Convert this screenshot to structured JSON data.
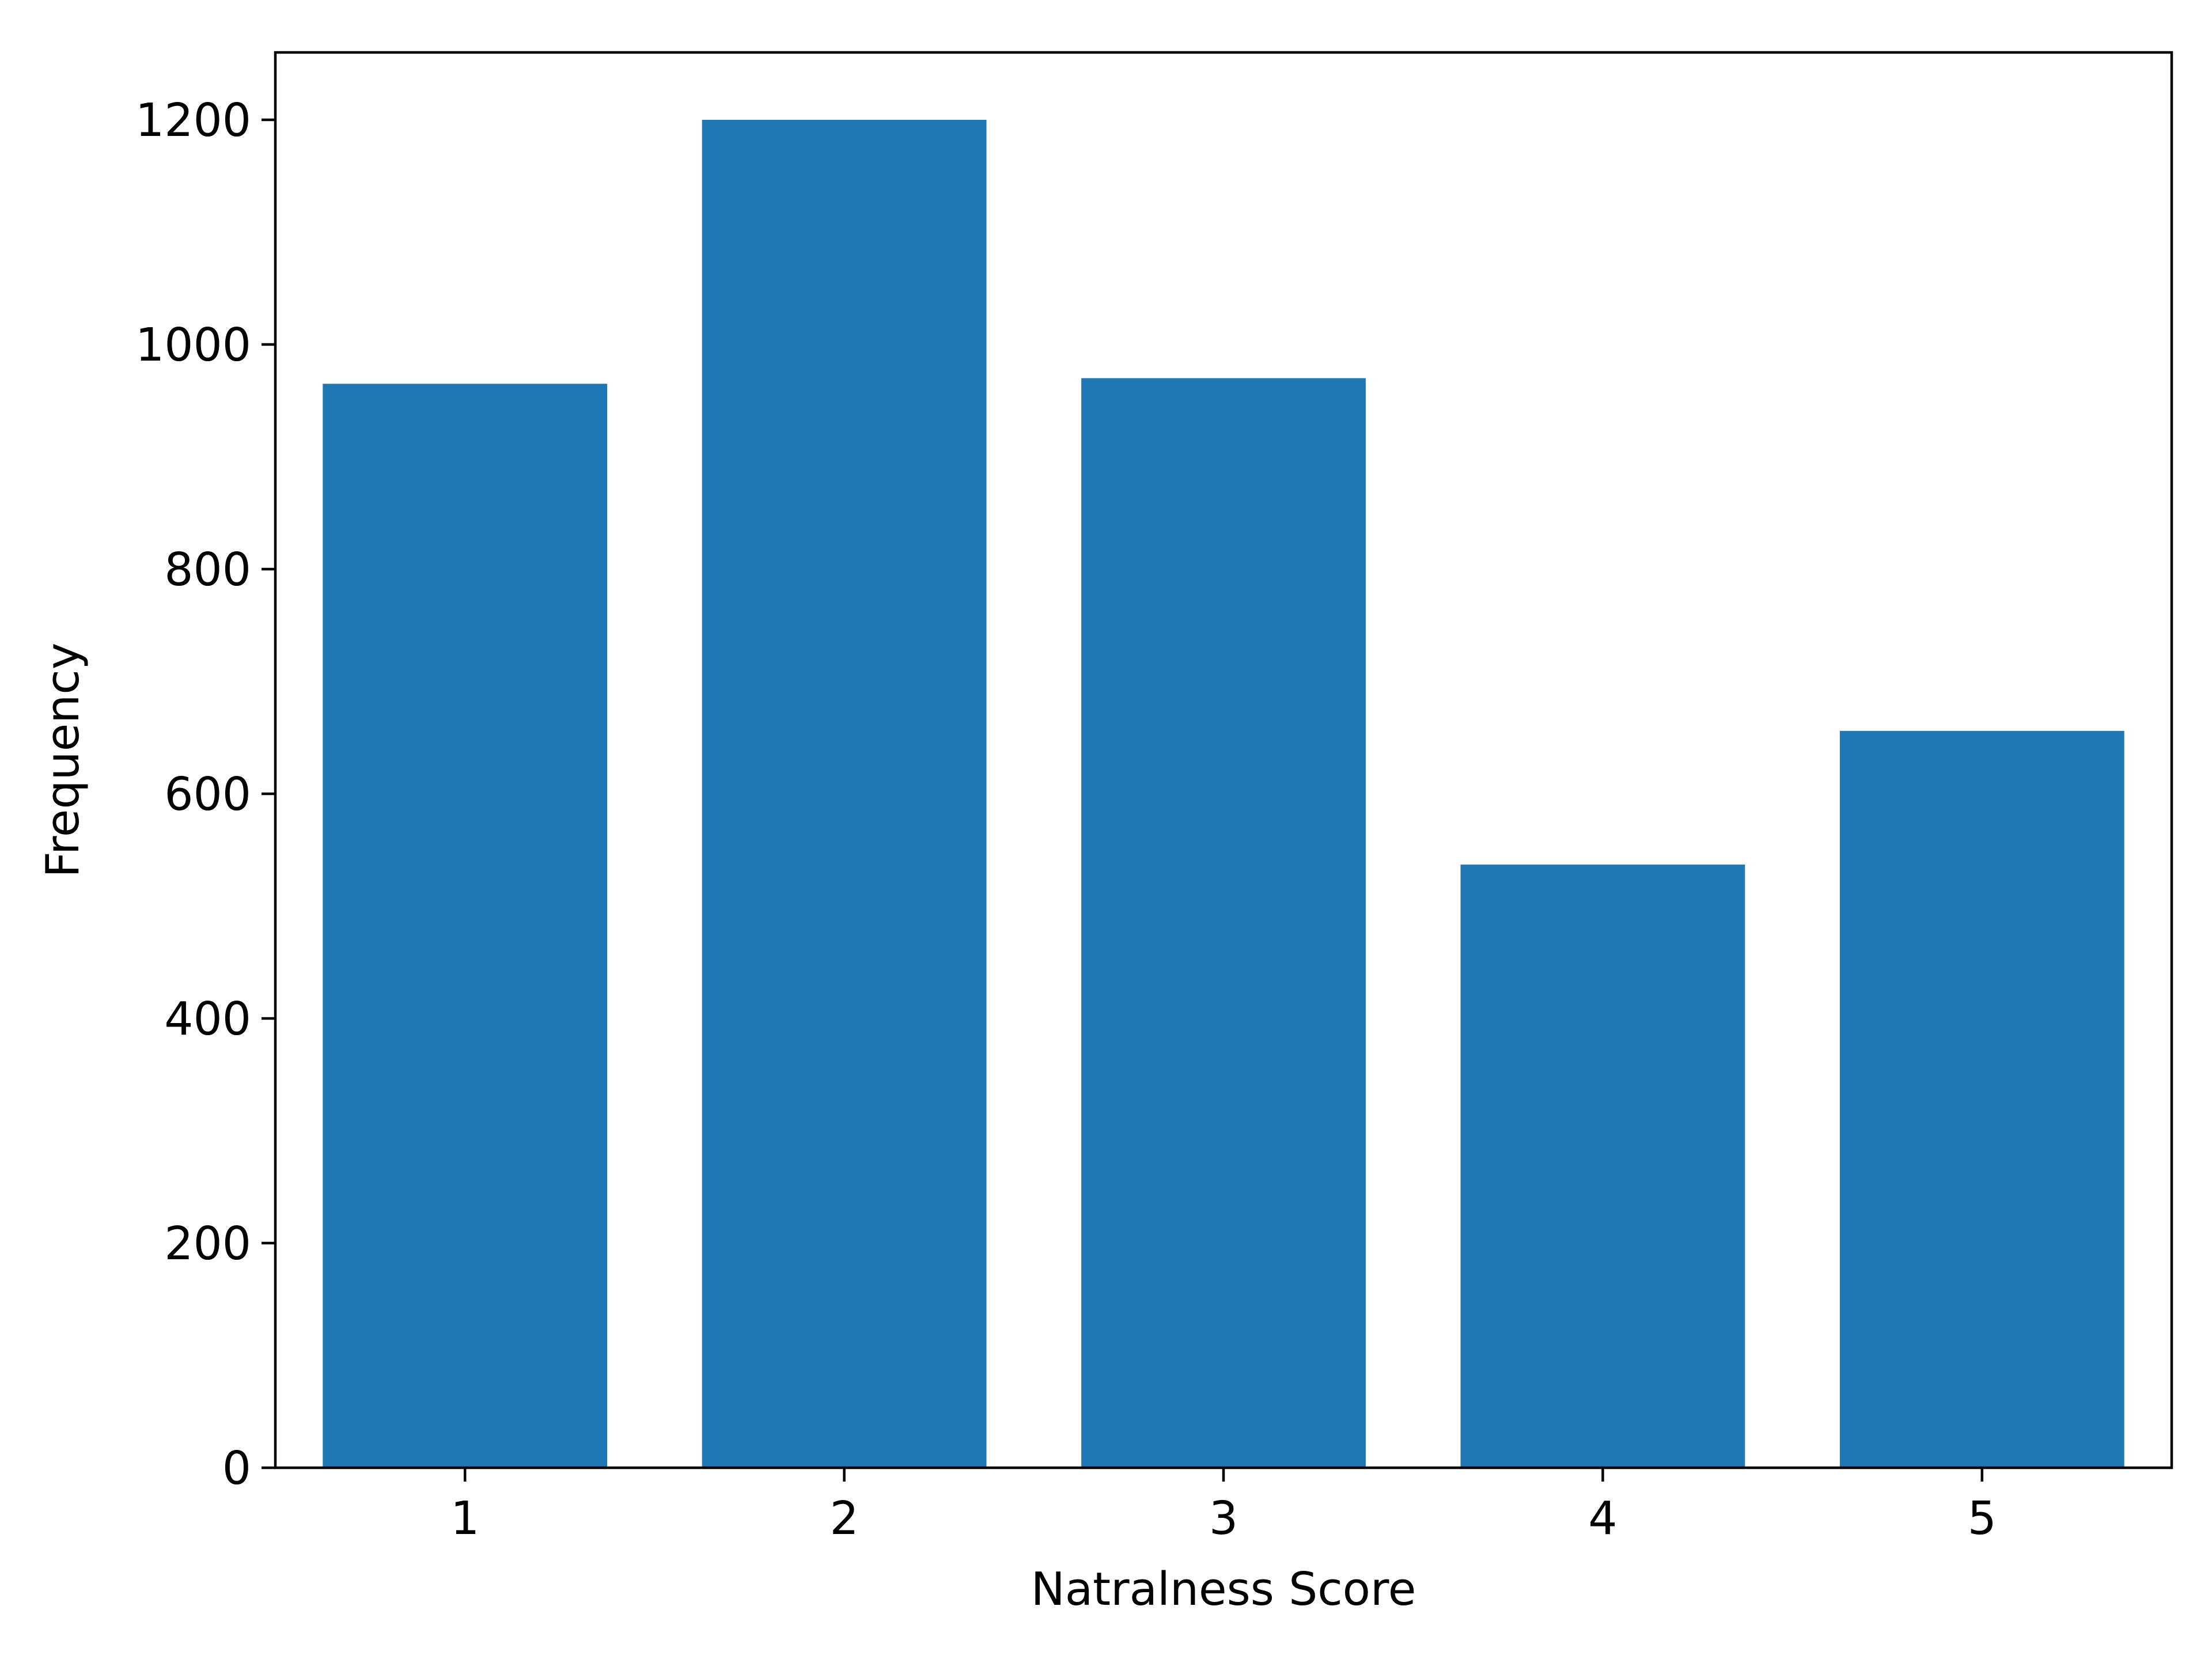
{
  "chart_data": {
    "type": "bar",
    "title": "",
    "xlabel": "Natralness Score",
    "ylabel": "Frequency",
    "categories": [
      "1",
      "2",
      "3",
      "4",
      "5"
    ],
    "values": [
      965,
      1200,
      970,
      537,
      656
    ],
    "ylim": [
      0,
      1260
    ],
    "yticks": [
      0,
      200,
      400,
      600,
      800,
      1000,
      1200
    ],
    "grid": false,
    "bar_color": "#1f77b4"
  }
}
